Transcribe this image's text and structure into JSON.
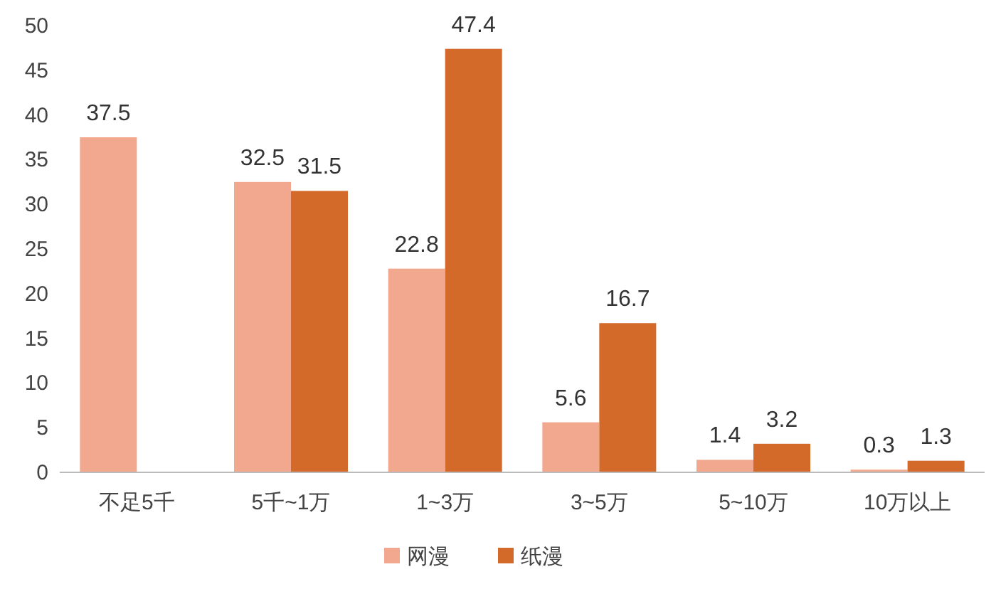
{
  "chart_data": {
    "type": "bar",
    "categories": [
      "不足5千",
      "5千~1万",
      "1~3万",
      "3~5万",
      "5~10万",
      "10万以上"
    ],
    "series": [
      {
        "name": "网漫",
        "color": "#f2a88e",
        "values": [
          37.5,
          32.5,
          22.8,
          5.6,
          1.4,
          0.3
        ]
      },
      {
        "name": "纸漫",
        "color": "#d46a2a",
        "values": [
          null,
          31.5,
          47.4,
          16.7,
          3.2,
          1.3
        ]
      }
    ],
    "ylim": [
      0,
      50
    ],
    "yticks": [
      0,
      5,
      10,
      15,
      20,
      25,
      30,
      35,
      40,
      45,
      50
    ],
    "data_labels": true,
    "legend": "bottom",
    "grid": false
  }
}
